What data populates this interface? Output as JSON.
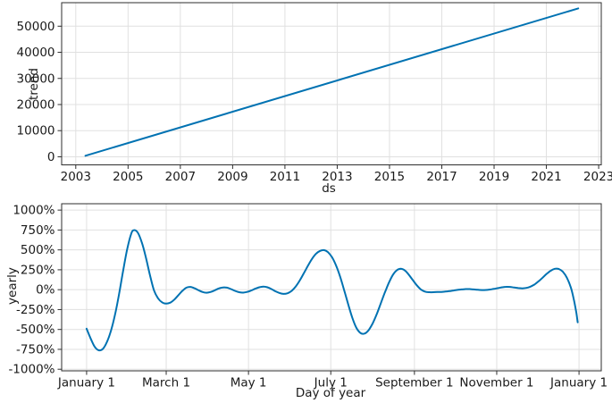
{
  "figure": {
    "background": "#ffffff",
    "line_color": "#0072B2",
    "grid_color": "#e0e0e0",
    "spine_color": "#2e2e2e",
    "text_color": "#1a1a1a"
  },
  "chart_data": [
    {
      "id": "trend",
      "type": "line",
      "title": "",
      "xlabel": "ds",
      "ylabel": "trend",
      "grid": true,
      "legend": "none",
      "xlim": [
        2002.46,
        2023.1
      ],
      "ylim": [
        -3100,
        59000
      ],
      "x_ticks": [
        {
          "value": 2003,
          "label": "2003"
        },
        {
          "value": 2005,
          "label": "2005"
        },
        {
          "value": 2007,
          "label": "2007"
        },
        {
          "value": 2009,
          "label": "2009"
        },
        {
          "value": 2011,
          "label": "2011"
        },
        {
          "value": 2013,
          "label": "2013"
        },
        {
          "value": 2015,
          "label": "2015"
        },
        {
          "value": 2017,
          "label": "2017"
        },
        {
          "value": 2019,
          "label": "2019"
        },
        {
          "value": 2021,
          "label": "2021"
        },
        {
          "value": 2023,
          "label": "2023"
        }
      ],
      "y_ticks": [
        {
          "value": 0,
          "label": "0"
        },
        {
          "value": 10000,
          "label": "10000"
        },
        {
          "value": 20000,
          "label": "20000"
        },
        {
          "value": 30000,
          "label": "30000"
        },
        {
          "value": 40000,
          "label": "40000"
        },
        {
          "value": 50000,
          "label": "50000"
        }
      ],
      "series": [
        {
          "name": "trend",
          "smooth": false,
          "points": [
            [
              2003.37,
              400
            ],
            [
              2022.22,
              56800
            ]
          ]
        }
      ]
    },
    {
      "id": "yearly",
      "type": "line",
      "title": "",
      "xlabel": "Day of year",
      "ylabel": "yearly",
      "grid": true,
      "legend": "none",
      "xlim": [
        -18.5,
        381.5
      ],
      "ylim": [
        -1020,
        1080
      ],
      "x_ticks": [
        {
          "value": 0,
          "label": "January 1"
        },
        {
          "value": 59,
          "label": "March 1"
        },
        {
          "value": 120,
          "label": "May 1"
        },
        {
          "value": 181,
          "label": "July 1"
        },
        {
          "value": 243,
          "label": "September 1"
        },
        {
          "value": 304,
          "label": "November 1"
        },
        {
          "value": 365,
          "label": "January 1"
        }
      ],
      "y_ticks": [
        {
          "value": 1000,
          "label": "1000%"
        },
        {
          "value": 750,
          "label": "750%"
        },
        {
          "value": 500,
          "label": "500%"
        },
        {
          "value": 250,
          "label": "250%"
        },
        {
          "value": 0,
          "label": "0%"
        },
        {
          "value": -250,
          "label": "-250%"
        },
        {
          "value": -500,
          "label": "-500%"
        },
        {
          "value": -750,
          "label": "-750%"
        },
        {
          "value": -1000,
          "label": "-1000%"
        }
      ],
      "series": [
        {
          "name": "yearly",
          "smooth": true,
          "points": [
            [
              0,
              -490
            ],
            [
              3,
              -615
            ],
            [
              6,
              -718
            ],
            [
              9,
              -762
            ],
            [
              12,
              -745
            ],
            [
              15,
              -660
            ],
            [
              18,
              -520
            ],
            [
              21,
              -320
            ],
            [
              24,
              -60
            ],
            [
              27,
              230
            ],
            [
              30,
              500
            ],
            [
              33,
              700
            ],
            [
              35,
              748
            ],
            [
              38,
              715
            ],
            [
              41,
              590
            ],
            [
              44,
              400
            ],
            [
              47,
              180
            ],
            [
              50,
              -10
            ],
            [
              53,
              -110
            ],
            [
              56,
              -160
            ],
            [
              59,
              -175
            ],
            [
              62,
              -163
            ],
            [
              65,
              -125
            ],
            [
              68,
              -70
            ],
            [
              71,
              -15
            ],
            [
              74,
              25
            ],
            [
              77,
              35
            ],
            [
              80,
              18
            ],
            [
              83,
              -8
            ],
            [
              86,
              -30
            ],
            [
              89,
              -38
            ],
            [
              92,
              -28
            ],
            [
              95,
              -8
            ],
            [
              98,
              15
            ],
            [
              101,
              28
            ],
            [
              104,
              25
            ],
            [
              107,
              8
            ],
            [
              110,
              -15
            ],
            [
              113,
              -32
            ],
            [
              116,
              -37
            ],
            [
              119,
              -28
            ],
            [
              122,
              -10
            ],
            [
              125,
              12
            ],
            [
              128,
              30
            ],
            [
              131,
              39
            ],
            [
              134,
              30
            ],
            [
              137,
              8
            ],
            [
              140,
              -20
            ],
            [
              143,
              -42
            ],
            [
              146,
              -53
            ],
            [
              149,
              -45
            ],
            [
              152,
              -15
            ],
            [
              155,
              40
            ],
            [
              158,
              115
            ],
            [
              161,
              205
            ],
            [
              164,
              300
            ],
            [
              167,
              385
            ],
            [
              170,
              450
            ],
            [
              173,
              487
            ],
            [
              176,
              497
            ],
            [
              179,
              470
            ],
            [
              182,
              405
            ],
            [
              185,
              300
            ],
            [
              188,
              160
            ],
            [
              191,
              -10
            ],
            [
              194,
              -190
            ],
            [
              197,
              -355
            ],
            [
              200,
              -480
            ],
            [
              203,
              -545
            ],
            [
              206,
              -552
            ],
            [
              209,
              -510
            ],
            [
              212,
              -425
            ],
            [
              215,
              -310
            ],
            [
              218,
              -175
            ],
            [
              221,
              -40
            ],
            [
              224,
              85
            ],
            [
              227,
              185
            ],
            [
              230,
              245
            ],
            [
              233,
              262
            ],
            [
              236,
              240
            ],
            [
              239,
              185
            ],
            [
              242,
              115
            ],
            [
              245,
              50
            ],
            [
              248,
              0
            ],
            [
              251,
              -25
            ],
            [
              254,
              -32
            ],
            [
              257,
              -32
            ],
            [
              260,
              -30
            ],
            [
              263,
              -28
            ],
            [
              266,
              -24
            ],
            [
              269,
              -18
            ],
            [
              272,
              -10
            ],
            [
              275,
              -3
            ],
            [
              278,
              3
            ],
            [
              281,
              7
            ],
            [
              284,
              7
            ],
            [
              287,
              3
            ],
            [
              290,
              -2
            ],
            [
              293,
              -5
            ],
            [
              296,
              -4
            ],
            [
              299,
              2
            ],
            [
              302,
              10
            ],
            [
              305,
              20
            ],
            [
              308,
              30
            ],
            [
              311,
              36
            ],
            [
              314,
              34
            ],
            [
              317,
              27
            ],
            [
              320,
              20
            ],
            [
              323,
              17
            ],
            [
              326,
              22
            ],
            [
              329,
              38
            ],
            [
              332,
              65
            ],
            [
              335,
              105
            ],
            [
              338,
              150
            ],
            [
              341,
              198
            ],
            [
              344,
              238
            ],
            [
              347,
              262
            ],
            [
              350,
              260
            ],
            [
              353,
              225
            ],
            [
              356,
              150
            ],
            [
              359,
              25
            ],
            [
              361,
              -110
            ],
            [
              363,
              -290
            ],
            [
              364,
              -410
            ]
          ]
        }
      ]
    }
  ]
}
